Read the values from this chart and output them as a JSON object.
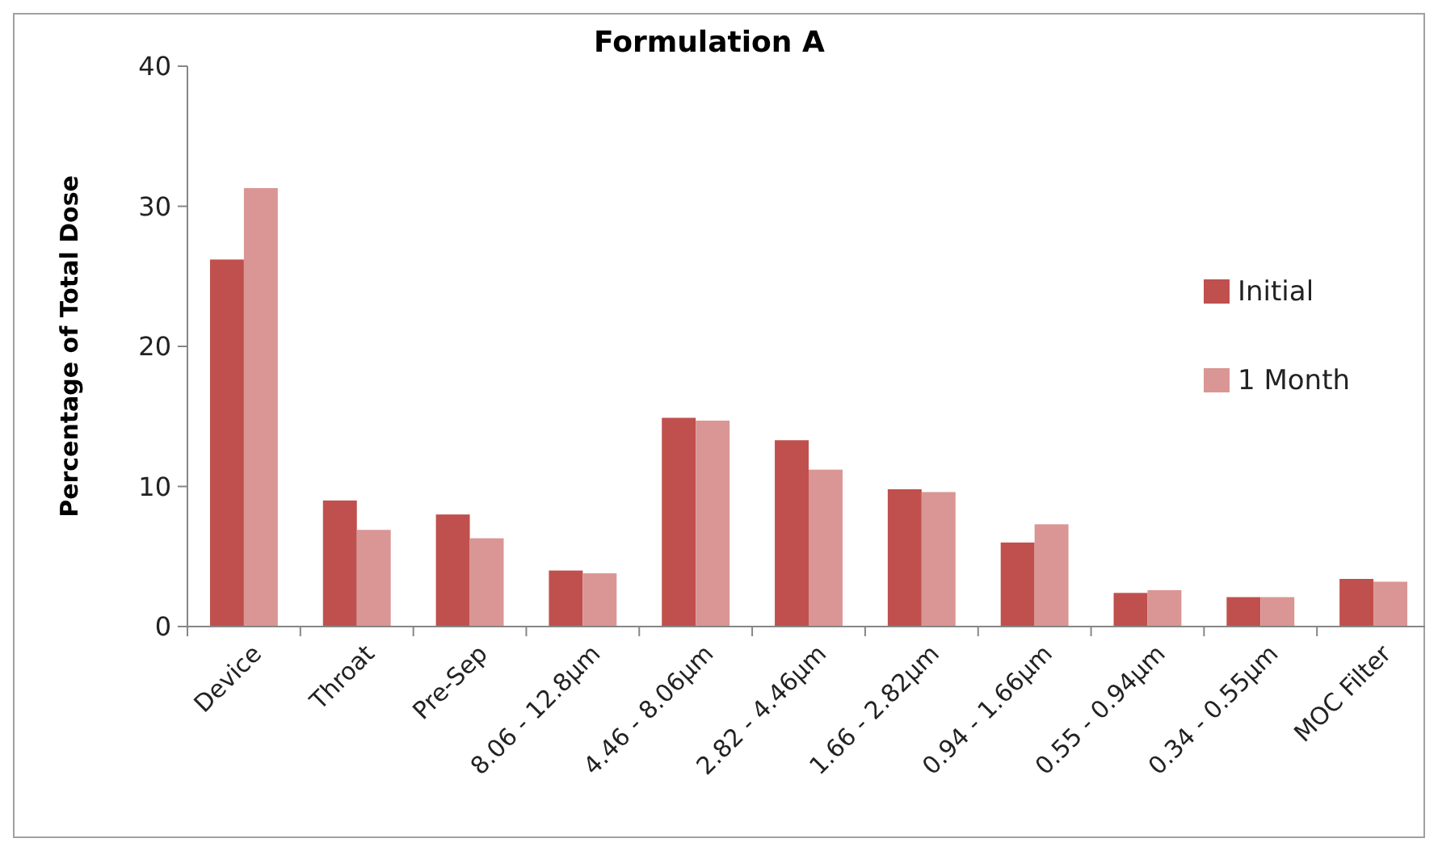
{
  "chart_data": {
    "type": "bar",
    "title": "Formulation A",
    "ylabel": "Percentage of Total Dose",
    "categories": [
      "Device",
      "Throat",
      "Pre-Sep",
      "8.06 - 12.8µm",
      "4.46 - 8.06µm",
      "2.82 - 4.46µm",
      "1.66 - 2.82µm",
      "0.94 - 1.66µm",
      "0.55 - 0.94µm",
      "0.34 - 0.55µm",
      "MOC Filter"
    ],
    "series": [
      {
        "name": "Initial",
        "color": "#c0504d",
        "values": [
          26.2,
          9.0,
          8.0,
          4.0,
          14.9,
          13.3,
          9.8,
          6.0,
          2.4,
          2.1,
          3.4
        ]
      },
      {
        "name": "1 Month",
        "color": "#d99694",
        "values": [
          31.3,
          6.9,
          6.3,
          3.8,
          14.7,
          11.2,
          9.6,
          7.3,
          2.6,
          2.1,
          3.2
        ]
      }
    ],
    "ylim": [
      0,
      40
    ],
    "yticks": [
      0,
      10,
      20,
      30,
      40
    ],
    "grid": false,
    "legend": "right"
  }
}
